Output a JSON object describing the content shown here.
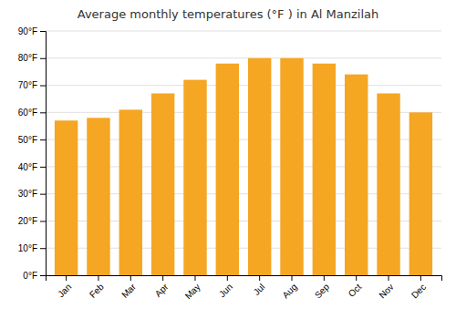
{
  "chart_data": {
    "type": "bar",
    "title": "Average monthly temperatures (°F ) in Al Manzilah",
    "categories": [
      "Jan",
      "Feb",
      "Mar",
      "Apr",
      "May",
      "Jun",
      "Jul",
      "Aug",
      "Sep",
      "Oct",
      "Nov",
      "Dec"
    ],
    "values": [
      57,
      58,
      61,
      67,
      72,
      78,
      80,
      80,
      78,
      74,
      67,
      60
    ],
    "color": "#F5A623",
    "ylim": [
      0,
      90
    ],
    "yticks": [
      {
        "value": 0,
        "label": "0°F"
      },
      {
        "value": 10,
        "label": "10°F"
      },
      {
        "value": 20,
        "label": "20°F"
      },
      {
        "value": 30,
        "label": "30°F"
      },
      {
        "value": 40,
        "label": "40°F"
      },
      {
        "value": 50,
        "label": "50°F"
      },
      {
        "value": 60,
        "label": "60°F"
      },
      {
        "value": 70,
        "label": "70°F"
      },
      {
        "value": 80,
        "label": "80°F"
      },
      {
        "value": 90,
        "label": "90°F"
      }
    ],
    "grid": true
  }
}
